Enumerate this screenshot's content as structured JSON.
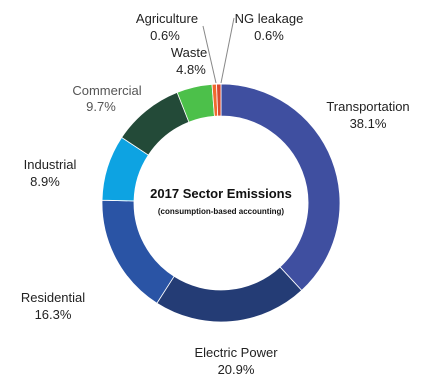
{
  "chart_data": {
    "type": "pie",
    "title": "2017 Sector Emissions",
    "subtitle": "(consumption-based accounting)",
    "slices": [
      {
        "name": "Transportation",
        "value": 38.1,
        "label": "38.1%",
        "color": "#3f4fa0"
      },
      {
        "name": "Electric Power",
        "value": 20.9,
        "label": "20.9%",
        "color": "#243c75"
      },
      {
        "name": "Residential",
        "value": 16.3,
        "label": "16.3%",
        "color": "#2a54a5"
      },
      {
        "name": "Industrial",
        "value": 8.9,
        "label": "8.9%",
        "color": "#0da3e2"
      },
      {
        "name": "Commercial",
        "value": 9.7,
        "label": "9.7%",
        "color": "#234a38"
      },
      {
        "name": "Waste",
        "value": 4.8,
        "label": "4.8%",
        "color": "#4cc04a"
      },
      {
        "name": "Agriculture",
        "value": 0.6,
        "label": "0.6%",
        "color": "#f06a2e"
      },
      {
        "name": "NG leakage",
        "value": 0.6,
        "label": "0.6%",
        "color": "#d94a2f"
      }
    ]
  }
}
